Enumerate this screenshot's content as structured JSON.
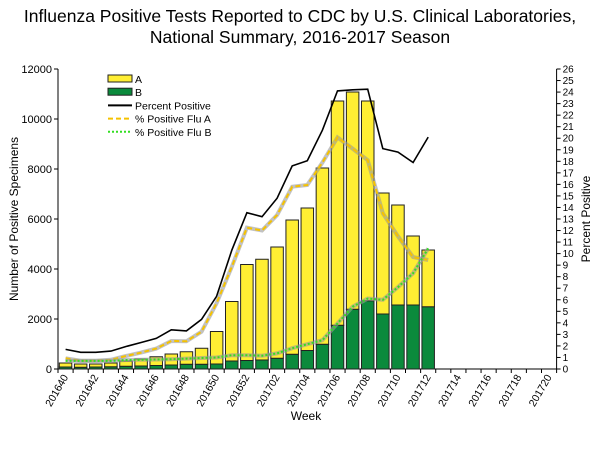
{
  "chart_data": {
    "type": "bar",
    "title_line1": "Influenza Positive Tests Reported to CDC by U.S. Clinical Laboratories,",
    "title_line2": "National Summary, 2016-2017 Season",
    "xlabel": "Week",
    "ylabel": "Number of Positive Specimens",
    "y2label": "Percent Positive",
    "ylim": [
      0,
      12000
    ],
    "yticks": [
      0,
      2000,
      4000,
      6000,
      8000,
      10000,
      12000
    ],
    "y2lim": [
      0,
      26
    ],
    "y2ticks": [
      0,
      1,
      2,
      3,
      4,
      5,
      6,
      7,
      8,
      9,
      10,
      11,
      12,
      13,
      14,
      15,
      16,
      17,
      18,
      19,
      20,
      21,
      22,
      23,
      24,
      25,
      26
    ],
    "categories": [
      "201640",
      "201641",
      "201642",
      "201643",
      "201644",
      "201645",
      "201646",
      "201647",
      "201648",
      "201649",
      "201650",
      "201651",
      "201652",
      "201701",
      "201702",
      "201703",
      "201704",
      "201705",
      "201706",
      "201707",
      "201708",
      "201709",
      "201710",
      "201711",
      "201712",
      "201713",
      "201714",
      "201715",
      "201716",
      "201717",
      "201718",
      "201719",
      "201720"
    ],
    "tick_labels": [
      "201640",
      "201642",
      "201644",
      "201646",
      "201648",
      "201650",
      "201652",
      "201702",
      "201704",
      "201706",
      "201708",
      "201710",
      "201712",
      "201714",
      "201716",
      "201718",
      "201720"
    ],
    "stacked_series": [
      {
        "name": "B",
        "color": "#0b8a3c",
        "values": [
          80,
          70,
          80,
          90,
          110,
          120,
          140,
          160,
          190,
          190,
          200,
          320,
          340,
          360,
          430,
          590,
          740,
          990,
          1750,
          2390,
          2730,
          2200,
          2560,
          2560,
          2490
        ]
      },
      {
        "name": "A",
        "color": "#ffee33",
        "values": [
          160,
          130,
          120,
          150,
          210,
          280,
          350,
          440,
          500,
          640,
          1300,
          2380,
          3840,
          4030,
          4450,
          5370,
          5700,
          7050,
          8970,
          8690,
          7990,
          4840,
          4000,
          2760,
          2270
        ]
      }
    ],
    "line_series": [
      {
        "name": "Percent Positive",
        "color": "#000000",
        "style": "solid",
        "values": [
          1.7,
          1.45,
          1.45,
          1.55,
          1.95,
          2.3,
          2.65,
          3.4,
          3.3,
          4.3,
          6.3,
          10.3,
          13.55,
          13.2,
          14.8,
          17.6,
          18.05,
          20.7,
          24.1,
          24.2,
          24.25,
          19.1,
          18.8,
          17.9,
          20.1
        ]
      },
      {
        "name": "% Positive Flu A",
        "color": "#f5c200",
        "style": "dashed",
        "values": [
          0.93,
          0.72,
          0.72,
          0.8,
          1.13,
          1.42,
          1.77,
          2.43,
          2.4,
          3.23,
          5.7,
          8.86,
          12.25,
          12.0,
          13.35,
          15.8,
          15.95,
          17.9,
          20.07,
          19.1,
          18.1,
          13.5,
          11.5,
          9.7,
          9.45
        ]
      },
      {
        "name": "% Positive Flu B",
        "color": "#33dd22",
        "style": "dotted",
        "values": [
          0.7,
          0.7,
          0.7,
          0.7,
          0.78,
          0.8,
          0.82,
          0.85,
          0.9,
          0.95,
          1.0,
          1.2,
          1.2,
          1.15,
          1.35,
          1.8,
          2.15,
          2.5,
          3.95,
          5.4,
          6.1,
          6.0,
          7.1,
          8.3,
          10.45
        ]
      }
    ],
    "legend": {
      "placement": "top-left",
      "entries": [
        "A",
        "B",
        "Percent Positive",
        "% Positive Flu A",
        "% Positive Flu B"
      ]
    },
    "grid": false
  }
}
